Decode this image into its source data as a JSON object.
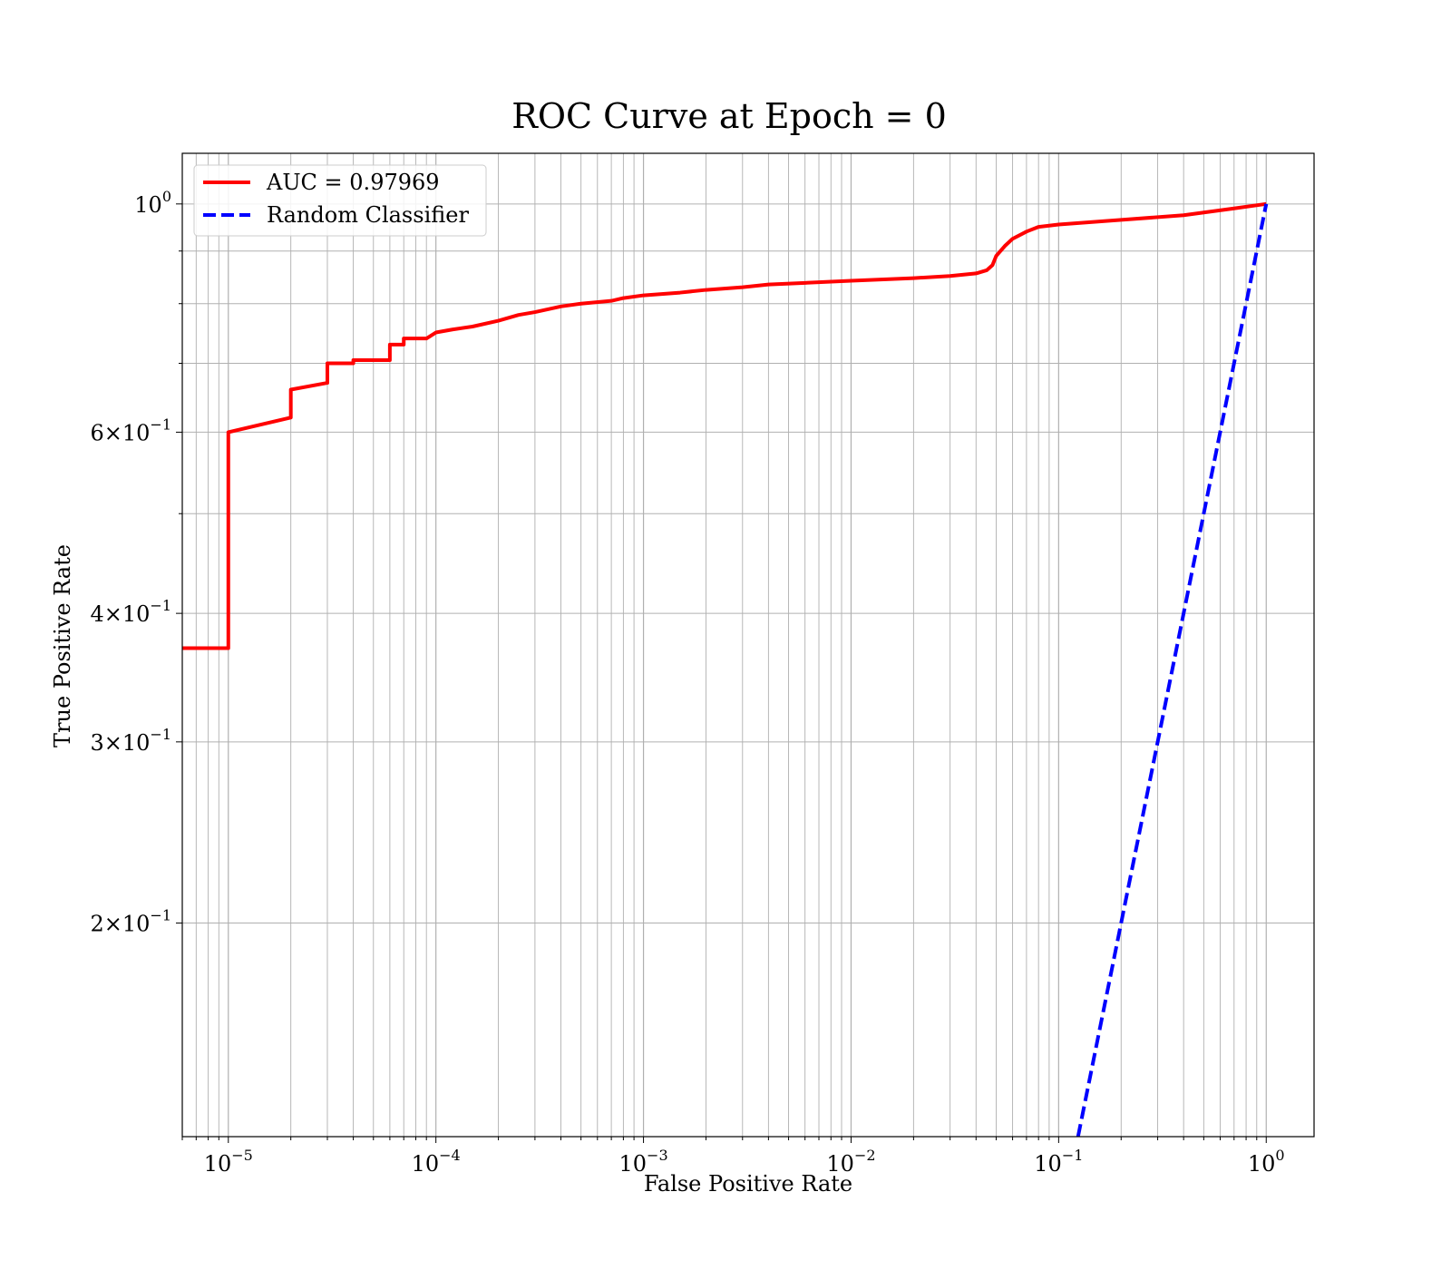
{
  "chart_data": {
    "type": "line",
    "title": "ROC Curve at Epoch = 0",
    "xlabel": "False Positive Rate",
    "ylabel": "True Positive Rate",
    "xscale": "log",
    "yscale": "log",
    "xlim": [
      6e-06,
      1.7
    ],
    "ylim": [
      0.124,
      1.12
    ],
    "grid": "both (major and minor)",
    "legend_position": "top-left",
    "x_ticks": [
      {
        "value": 1e-05,
        "base": "10",
        "exp": "−5"
      },
      {
        "value": 0.0001,
        "base": "10",
        "exp": "−4"
      },
      {
        "value": 0.001,
        "base": "10",
        "exp": "−3"
      },
      {
        "value": 0.01,
        "base": "10",
        "exp": "−2"
      },
      {
        "value": 0.1,
        "base": "10",
        "exp": "−1"
      },
      {
        "value": 1,
        "base": "10",
        "exp": "0"
      }
    ],
    "y_ticks": [
      {
        "value": 1,
        "mant": "",
        "base": "10",
        "exp": "0"
      },
      {
        "value": 0.6,
        "mant": "6",
        "base": "10",
        "exp": "−1"
      },
      {
        "value": 0.4,
        "mant": "4",
        "base": "10",
        "exp": "−1"
      },
      {
        "value": 0.3,
        "mant": "3",
        "base": "10",
        "exp": "−1"
      },
      {
        "value": 0.2,
        "mant": "2",
        "base": "10",
        "exp": "−1"
      }
    ],
    "series": [
      {
        "name": "AUC = 0.97969",
        "color": "#ff0000",
        "style": "solid",
        "x": [
          6e-06,
          1e-05,
          1e-05,
          2e-05,
          2e-05,
          3e-05,
          3e-05,
          4e-05,
          4e-05,
          6e-05,
          6e-05,
          7e-05,
          7e-05,
          9e-05,
          0.0001,
          0.00012,
          0.00015,
          0.0002,
          0.00025,
          0.0003,
          0.0004,
          0.0005,
          0.0007,
          0.0008,
          0.001,
          0.0015,
          0.002,
          0.003,
          0.004,
          0.006,
          0.01,
          0.02,
          0.03,
          0.04,
          0.045,
          0.048,
          0.05,
          0.055,
          0.06,
          0.07,
          0.08,
          0.1,
          0.2,
          0.4,
          0.7,
          1.0
        ],
        "y": [
          0.37,
          0.37,
          0.6,
          0.62,
          0.66,
          0.67,
          0.7,
          0.7,
          0.705,
          0.705,
          0.73,
          0.73,
          0.74,
          0.74,
          0.75,
          0.755,
          0.76,
          0.77,
          0.78,
          0.785,
          0.795,
          0.8,
          0.805,
          0.81,
          0.815,
          0.82,
          0.825,
          0.83,
          0.835,
          0.838,
          0.842,
          0.847,
          0.851,
          0.856,
          0.862,
          0.872,
          0.89,
          0.91,
          0.925,
          0.94,
          0.95,
          0.955,
          0.965,
          0.975,
          0.99,
          1.0
        ]
      },
      {
        "name": "Random Classifier",
        "color": "#0000ff",
        "style": "dashed",
        "x": [
          0.124,
          1.0
        ],
        "y": [
          0.124,
          1.0
        ]
      }
    ]
  }
}
